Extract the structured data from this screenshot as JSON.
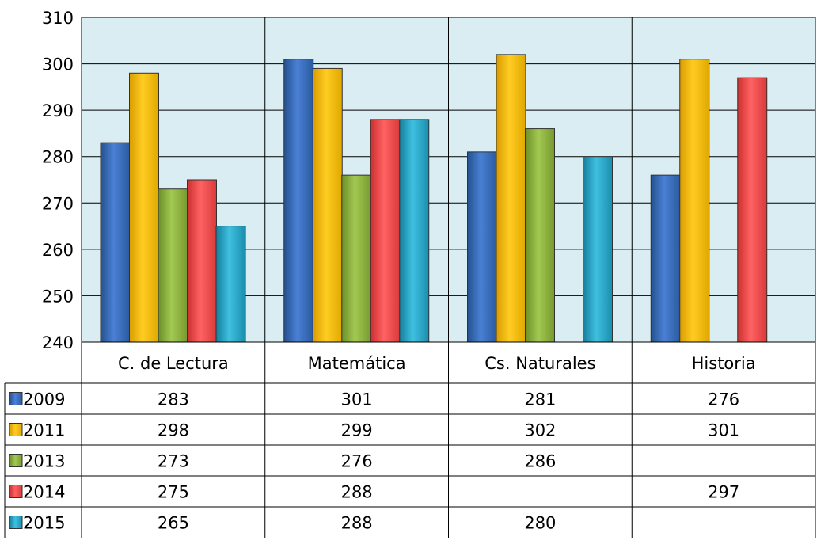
{
  "chart_data": {
    "type": "bar",
    "title": "",
    "xlabel": "",
    "ylabel": "",
    "ylim": [
      240,
      310
    ],
    "yticks": [
      240,
      250,
      260,
      270,
      280,
      290,
      300,
      310
    ],
    "grid": true,
    "legend_placement": "data-table-left",
    "categories": [
      "C. de Lectura",
      "Matemática",
      "Cs. Naturales",
      "Historia"
    ],
    "series": [
      {
        "name": "2009",
        "values": [
          283,
          301,
          281,
          276
        ],
        "color": "#3b6fc4"
      },
      {
        "name": "2011",
        "values": [
          298,
          299,
          302,
          301
        ],
        "color": "#ffc000"
      },
      {
        "name": "2013",
        "values": [
          273,
          276,
          286,
          null
        ],
        "color": "#92bc3d"
      },
      {
        "name": "2014",
        "values": [
          275,
          288,
          null,
          297
        ],
        "color": "#f24d4d"
      },
      {
        "name": "2015",
        "values": [
          265,
          288,
          280,
          null
        ],
        "color": "#27a9cd"
      }
    ],
    "plot_background": "#daedf3"
  }
}
